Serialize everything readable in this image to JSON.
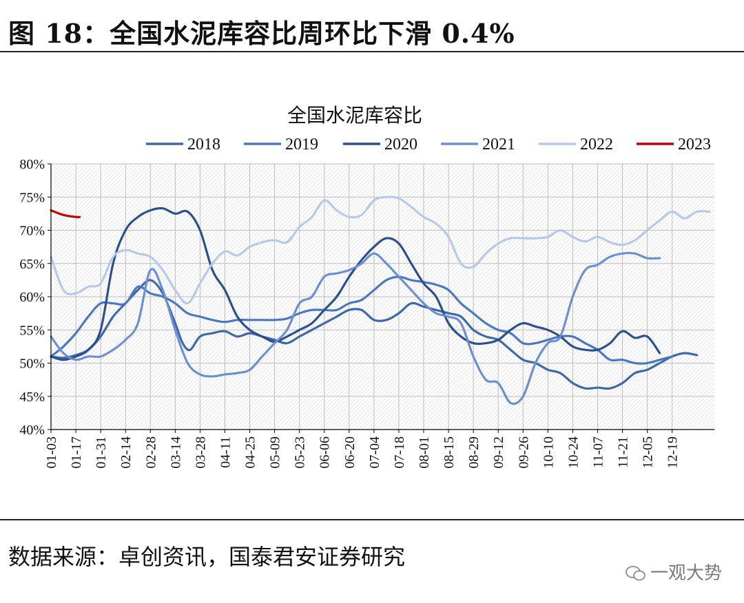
{
  "figure": {
    "title": "图 18：全国水泥库容比周环比下滑 0.4%",
    "source": "数据来源：卓创资讯，国泰君安证券研究",
    "watermark": "一观大势"
  },
  "chart_data": {
    "type": "line",
    "title": "全国水泥库容比",
    "xlabel": "",
    "ylabel": "",
    "ylim": [
      0.4,
      0.8
    ],
    "yticks": [
      "40%",
      "45%",
      "50%",
      "55%",
      "60%",
      "65%",
      "70%",
      "75%",
      "80%"
    ],
    "x_ticks": [
      "01-03",
      "01-17",
      "01-31",
      "02-14",
      "02-28",
      "03-14",
      "03-28",
      "04-11",
      "04-25",
      "05-09",
      "05-23",
      "06-06",
      "06-20",
      "07-04",
      "07-18",
      "08-01",
      "08-15",
      "08-29",
      "09-12",
      "09-26",
      "10-10",
      "10-24",
      "11-07",
      "11-21",
      "12-05",
      "12-19"
    ],
    "x_range": [
      0,
      26.7
    ],
    "grid": true,
    "legend_position": "top",
    "series": [
      {
        "name": "2018",
        "color": "#3e68a8",
        "x": [
          0,
          0.5,
          1,
          1.5,
          2,
          2.5,
          3,
          3.5,
          4,
          4.5,
          5,
          5.3,
          5.6,
          6,
          6.5,
          7,
          7.5,
          8,
          8.5,
          9,
          9.5,
          10,
          10.5,
          11,
          11.5,
          12,
          12.5,
          13,
          13.5,
          14,
          14.5,
          15,
          15.5,
          16,
          16.5,
          17,
          17.5,
          18,
          18.5,
          19,
          19.5,
          20,
          20.5,
          21,
          21.5,
          22,
          22.5,
          23,
          23.5,
          24,
          24.5,
          25,
          25.5,
          26
        ],
        "values": [
          0.51,
          0.508,
          0.512,
          0.52,
          0.54,
          0.57,
          0.59,
          0.61,
          0.625,
          0.605,
          0.56,
          0.53,
          0.52,
          0.54,
          0.545,
          0.548,
          0.54,
          0.545,
          0.54,
          0.535,
          0.53,
          0.54,
          0.55,
          0.56,
          0.57,
          0.58,
          0.58,
          0.565,
          0.565,
          0.575,
          0.59,
          0.585,
          0.58,
          0.575,
          0.57,
          0.55,
          0.54,
          0.535,
          0.52,
          0.505,
          0.5,
          0.49,
          0.485,
          0.47,
          0.462,
          0.463,
          0.462,
          0.47,
          0.485,
          0.49,
          0.5,
          0.51,
          0.515,
          0.512
        ]
      },
      {
        "name": "2019",
        "color": "#4a78c0",
        "x": [
          0,
          0.5,
          1,
          1.5,
          2,
          2.5,
          3,
          3.5,
          4,
          4.5,
          5,
          5.5,
          6,
          6.5,
          7,
          7.5,
          8,
          8.5,
          9,
          9.5,
          10,
          10.5,
          11,
          11.5,
          12,
          12.5,
          13,
          13.5,
          14,
          14.5,
          15,
          15.5,
          16,
          16.5,
          17,
          17.5,
          18,
          18.5,
          19,
          19.5,
          20,
          20.5,
          21,
          21.5,
          22,
          22.5,
          23,
          23.5,
          24,
          24.5,
          25
        ],
        "values": [
          0.51,
          0.525,
          0.545,
          0.57,
          0.59,
          0.59,
          0.59,
          0.615,
          0.605,
          0.6,
          0.59,
          0.575,
          0.57,
          0.565,
          0.562,
          0.565,
          0.565,
          0.565,
          0.565,
          0.567,
          0.575,
          0.58,
          0.58,
          0.58,
          0.59,
          0.595,
          0.61,
          0.625,
          0.63,
          0.625,
          0.622,
          0.618,
          0.61,
          0.59,
          0.575,
          0.56,
          0.55,
          0.545,
          0.53,
          0.53,
          0.535,
          0.54,
          0.54,
          0.53,
          0.52,
          0.505,
          0.505,
          0.5,
          0.5,
          0.505,
          0.51
        ]
      },
      {
        "name": "2020",
        "color": "#2c4f8f",
        "x": [
          0,
          0.5,
          1,
          1.5,
          2,
          2.5,
          3,
          3.5,
          4,
          4.5,
          5,
          5.5,
          6,
          6.5,
          7,
          7.5,
          8,
          8.5,
          9,
          9.5,
          10,
          10.5,
          11,
          11.5,
          12,
          12.5,
          13,
          13.5,
          14,
          14.5,
          15,
          15.5,
          16,
          16.5,
          17,
          17.5,
          18,
          18.5,
          19,
          19.5,
          20,
          20.5,
          21,
          21.5,
          22,
          22.5,
          23,
          23.5,
          24,
          24.5
        ],
        "values": [
          0.51,
          0.505,
          0.51,
          0.52,
          0.55,
          0.65,
          0.7,
          0.72,
          0.73,
          0.733,
          0.725,
          0.728,
          0.7,
          0.64,
          0.61,
          0.57,
          0.55,
          0.54,
          0.532,
          0.54,
          0.55,
          0.56,
          0.58,
          0.6,
          0.63,
          0.655,
          0.675,
          0.688,
          0.68,
          0.65,
          0.62,
          0.6,
          0.56,
          0.54,
          0.53,
          0.53,
          0.535,
          0.55,
          0.56,
          0.555,
          0.55,
          0.54,
          0.525,
          0.52,
          0.52,
          0.53,
          0.548,
          0.538,
          0.54,
          0.515
        ]
      },
      {
        "name": "2021",
        "color": "#6b8fd0",
        "x": [
          0,
          0.5,
          1,
          1.5,
          2,
          2.5,
          3,
          3.5,
          4,
          4.5,
          5,
          5.5,
          6,
          6.5,
          7,
          7.5,
          8,
          8.5,
          9,
          9.5,
          10,
          10.5,
          11,
          11.5,
          12,
          12.5,
          13,
          13.5,
          14,
          14.5,
          15,
          15.5,
          16,
          16.5,
          17,
          17.5,
          18,
          18.5,
          19,
          19.5,
          20,
          20.5,
          21,
          21.5,
          22,
          22.5,
          23,
          23.5,
          24,
          24.5
        ],
        "values": [
          0.54,
          0.515,
          0.505,
          0.51,
          0.51,
          0.52,
          0.535,
          0.56,
          0.64,
          0.61,
          0.55,
          0.5,
          0.483,
          0.48,
          0.483,
          0.485,
          0.49,
          0.51,
          0.53,
          0.55,
          0.59,
          0.6,
          0.63,
          0.635,
          0.64,
          0.65,
          0.665,
          0.65,
          0.63,
          0.61,
          0.59,
          0.575,
          0.57,
          0.56,
          0.51,
          0.475,
          0.47,
          0.44,
          0.45,
          0.5,
          0.53,
          0.54,
          0.6,
          0.64,
          0.648,
          0.66,
          0.665,
          0.665,
          0.658,
          0.658
        ]
      },
      {
        "name": "2022",
        "color": "#b6c9e8",
        "x": [
          0,
          0.5,
          1,
          1.5,
          2,
          2.5,
          3,
          3.5,
          4,
          4.5,
          5,
          5.5,
          6,
          6.5,
          7,
          7.5,
          8,
          8.5,
          9,
          9.5,
          10,
          10.5,
          11,
          11.5,
          12,
          12.5,
          13,
          13.5,
          14,
          14.5,
          15,
          15.5,
          16,
          16.5,
          17,
          17.5,
          18,
          18.5,
          19,
          19.5,
          20,
          20.5,
          21,
          21.5,
          22,
          22.5,
          23,
          23.5,
          24,
          24.5,
          25,
          25.5,
          26,
          26.5
        ],
        "values": [
          0.66,
          0.61,
          0.605,
          0.615,
          0.62,
          0.66,
          0.67,
          0.665,
          0.66,
          0.64,
          0.61,
          0.59,
          0.62,
          0.65,
          0.668,
          0.662,
          0.675,
          0.682,
          0.685,
          0.682,
          0.705,
          0.72,
          0.745,
          0.73,
          0.72,
          0.723,
          0.745,
          0.75,
          0.748,
          0.735,
          0.72,
          0.71,
          0.69,
          0.65,
          0.645,
          0.665,
          0.68,
          0.688,
          0.688,
          0.688,
          0.69,
          0.7,
          0.69,
          0.683,
          0.69,
          0.682,
          0.678,
          0.685,
          0.7,
          0.715,
          0.728,
          0.718,
          0.728,
          0.728
        ]
      },
      {
        "name": "2023",
        "color": "#c00000",
        "x": [
          0,
          0.5,
          1,
          1.15
        ],
        "values": [
          0.73,
          0.723,
          0.72,
          0.72
        ]
      }
    ]
  }
}
